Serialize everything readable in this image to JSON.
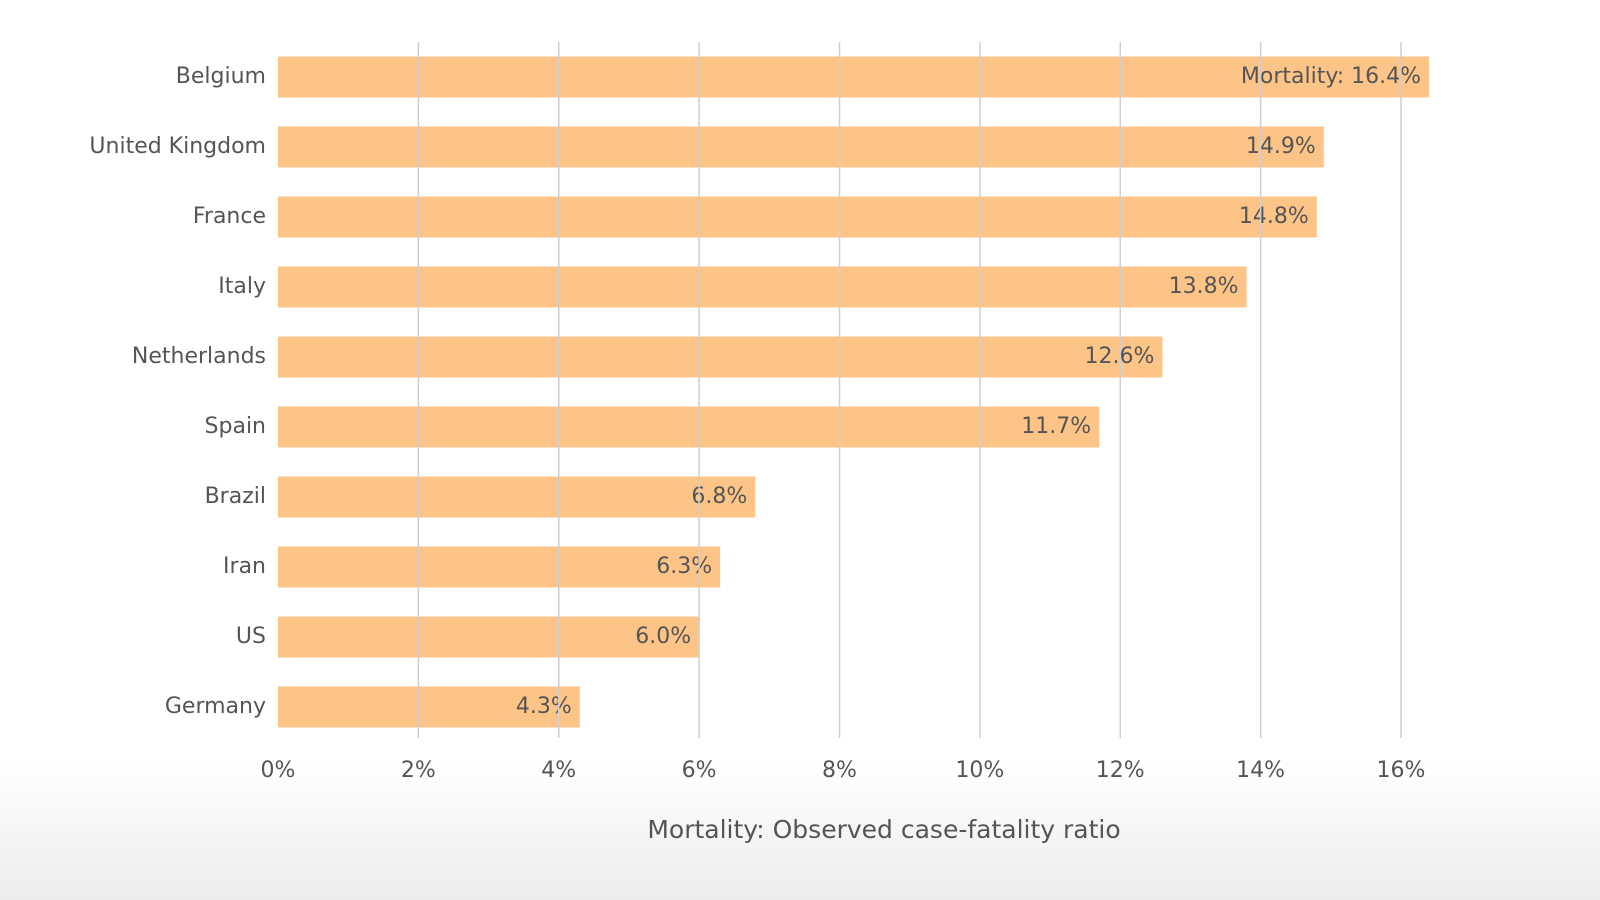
{
  "chart_data": {
    "type": "bar",
    "x_label": "Mortality: Observed case-fatality ratio",
    "categories": [
      "Belgium",
      "United Kingdom",
      "France",
      "Italy",
      "Netherlands",
      "Spain",
      "Brazil",
      "Iran",
      "US",
      "Germany"
    ],
    "values": [
      16.4,
      14.9,
      14.8,
      13.8,
      12.6,
      11.7,
      6.8,
      6.3,
      6.0,
      4.3
    ],
    "value_labels": [
      "Mortality: 16.4%",
      "14.9%",
      "14.8%",
      "13.8%",
      "12.6%",
      "11.7%",
      "6.8%",
      "6.3%",
      "6.0%",
      "4.3%"
    ],
    "color": "#fdc487",
    "xlim": [
      0,
      16
    ],
    "xticks": [
      {
        "value": 0,
        "label": "0%"
      },
      {
        "value": 2,
        "label": "2%"
      },
      {
        "value": 4,
        "label": "4%"
      },
      {
        "value": 6,
        "label": "6%"
      },
      {
        "value": 8,
        "label": "8%"
      },
      {
        "value": 10,
        "label": "10%"
      },
      {
        "value": 12,
        "label": "12%"
      },
      {
        "value": 14,
        "label": "14%"
      },
      {
        "value": 16,
        "label": "16%"
      }
    ],
    "grid": true
  }
}
